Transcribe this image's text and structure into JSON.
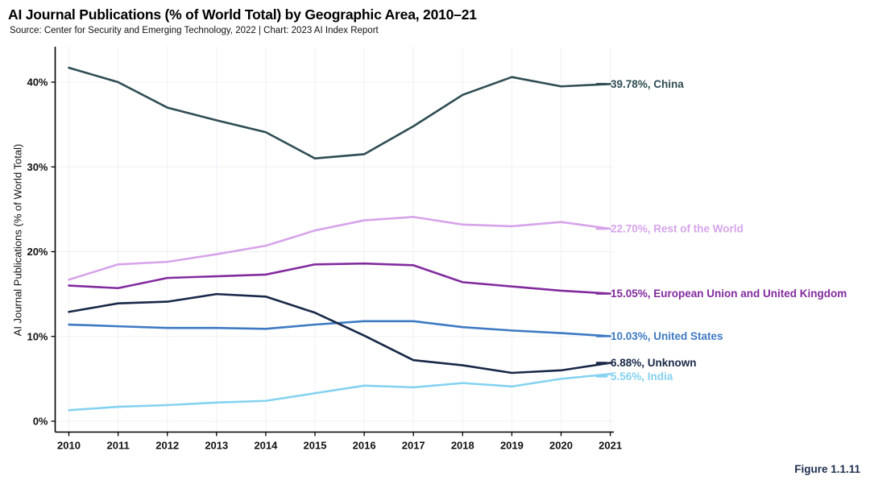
{
  "header": {
    "title": "AI Journal Publications (% of World Total) by Geographic Area, 2010–21",
    "subtitle": "Source: Center for Security and Emerging Technology, 2022 | Chart: 2023 AI Index Report"
  },
  "figure_label": "Figure 1.1.11",
  "chart_data": {
    "type": "line",
    "title": "AI Journal Publications (% of World Total) by Geographic Area, 2010–21",
    "xlabel": "",
    "ylabel": "AI Journal Publications (% of World Total)",
    "x": [
      2010,
      2011,
      2012,
      2013,
      2014,
      2015,
      2016,
      2017,
      2018,
      2019,
      2020,
      2021
    ],
    "x_tick_labels": [
      "2010",
      "2011",
      "2012",
      "2013",
      "2014",
      "2015",
      "2016",
      "2017",
      "2018",
      "2019",
      "2020",
      "2021"
    ],
    "y_ticks": [
      0,
      10,
      20,
      30,
      40
    ],
    "y_tick_labels": [
      "0%",
      "10%",
      "20%",
      "30%",
      "40%"
    ],
    "ylim": [
      0,
      44
    ],
    "grid": true,
    "legend_position": "right-end-labels",
    "series": [
      {
        "name": "China",
        "color": "#2e4d53",
        "end_label": "39.78%, China",
        "end_value": "39.78%",
        "values": [
          41.7,
          40.0,
          37.0,
          35.5,
          34.1,
          31.0,
          31.5,
          34.8,
          38.5,
          40.6,
          39.5,
          39.78
        ]
      },
      {
        "name": "Rest of the World",
        "color": "#d7a4ea",
        "end_label": "22.70%, Rest of the World",
        "end_value": "22.70%",
        "values": [
          16.7,
          18.5,
          18.8,
          19.7,
          20.7,
          22.5,
          23.7,
          24.1,
          23.2,
          23.0,
          23.5,
          22.7
        ]
      },
      {
        "name": "European Union and United Kingdom",
        "color": "#822b9e",
        "end_label": "15.05%, European Union and United Kingdom",
        "end_value": "15.05%",
        "values": [
          16.0,
          15.7,
          16.9,
          17.1,
          17.3,
          18.5,
          18.6,
          18.4,
          16.4,
          15.9,
          15.4,
          15.05
        ]
      },
      {
        "name": "United States",
        "color": "#3d7ac2",
        "end_label": "10.03%, United States",
        "end_value": "10.03%",
        "values": [
          11.4,
          11.2,
          11.0,
          11.0,
          10.9,
          11.4,
          11.8,
          11.8,
          11.1,
          10.7,
          10.4,
          10.03
        ]
      },
      {
        "name": "Unknown",
        "color": "#182848",
        "end_label": "6.88%, Unknown",
        "end_value": "6.88%",
        "values": [
          12.9,
          13.9,
          14.1,
          15.0,
          14.7,
          12.8,
          10.1,
          7.2,
          6.6,
          5.7,
          6.0,
          6.88
        ]
      },
      {
        "name": "India",
        "color": "#85d2f0",
        "end_label": "5.56%, India",
        "end_value": "5.56%",
        "values": [
          1.3,
          1.7,
          1.9,
          2.2,
          2.4,
          3.3,
          4.2,
          4.0,
          4.5,
          4.1,
          5.0,
          5.56
        ]
      }
    ]
  }
}
